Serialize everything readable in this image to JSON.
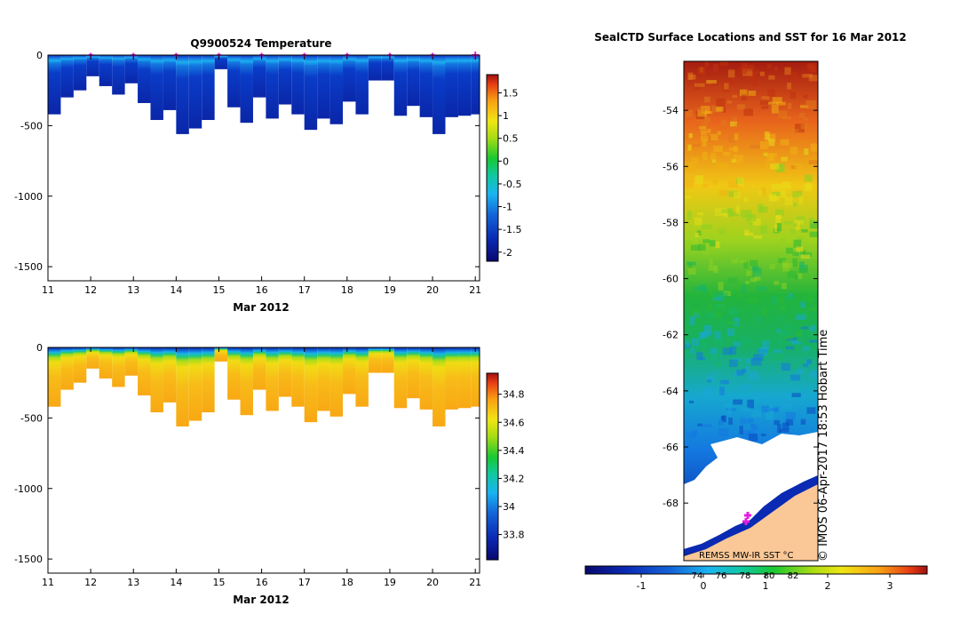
{
  "chart_data": [
    {
      "type": "heatmap",
      "name": "temperature",
      "title": "Q9900524  Temperature",
      "xlabel": "Mar 2012",
      "ylabel": "",
      "x_ticks": [
        "11",
        "12",
        "13",
        "14",
        "15",
        "16",
        "17",
        "18",
        "19",
        "20",
        "21"
      ],
      "y_ticks": [
        "0",
        "-500",
        "-1000",
        "-1500"
      ],
      "x_range": [
        11,
        21.1
      ],
      "y_range": [
        -1600,
        0
      ],
      "profile_days": [
        11.0,
        11.3,
        11.6,
        11.9,
        12.2,
        12.5,
        12.8,
        13.1,
        13.4,
        13.7,
        14.0,
        14.3,
        14.6,
        14.9,
        15.2,
        15.5,
        15.8,
        16.1,
        16.4,
        16.7,
        17.0,
        17.3,
        17.6,
        17.9,
        18.2,
        18.5,
        18.8,
        19.1,
        19.4,
        19.7,
        20.0,
        20.3,
        20.6,
        20.9
      ],
      "profile_depths": [
        420,
        300,
        250,
        150,
        220,
        280,
        200,
        340,
        460,
        390,
        560,
        520,
        460,
        100,
        370,
        480,
        300,
        450,
        350,
        420,
        530,
        450,
        490,
        330,
        420,
        180,
        180,
        430,
        360,
        440,
        560,
        440,
        430,
        420
      ],
      "markers_days": [
        12,
        13,
        14,
        15,
        16,
        17,
        18,
        19,
        20,
        21
      ],
      "colorbar": {
        "ticks": [
          "1.5",
          "1",
          "0.5",
          "0",
          "-0.5",
          "-1",
          "-1.5",
          "-2"
        ],
        "min": -2.2,
        "max": 1.9
      }
    },
    {
      "type": "heatmap",
      "name": "salinity",
      "title": "",
      "xlabel": "Mar 2012",
      "ylabel": "",
      "x_ticks": [
        "11",
        "12",
        "13",
        "14",
        "15",
        "16",
        "17",
        "18",
        "19",
        "20",
        "21"
      ],
      "y_ticks": [
        "0",
        "-500",
        "-1000",
        "-1500"
      ],
      "x_range": [
        11,
        21.1
      ],
      "y_range": [
        -1600,
        0
      ],
      "colorbar": {
        "ticks": [
          "34.8",
          "34.6",
          "34.4",
          "34.2",
          "34",
          "33.8"
        ],
        "min": 33.62,
        "max": 34.95
      }
    },
    {
      "type": "heatmap",
      "name": "sst-map",
      "title": "SealCTD Surface Locations and SST for 16 Mar 2012",
      "y_ticks": [
        "-54",
        "-56",
        "-58",
        "-60",
        "-62",
        "-64",
        "-66",
        "-68"
      ],
      "y_range": [
        -69.8,
        -52
      ],
      "source_label": "REMSS MW-IR SST °C",
      "timestamp_label": "© IMOS 06-Apr-2017 18:53 Hobart Time",
      "colorbar": {
        "ticks": [
          "-1",
          "0",
          "1",
          "2",
          "3"
        ],
        "extra_ticks": [
          "74",
          "76",
          "78",
          "80",
          "82"
        ],
        "min": -1.9,
        "max": 3.6
      }
    }
  ]
}
